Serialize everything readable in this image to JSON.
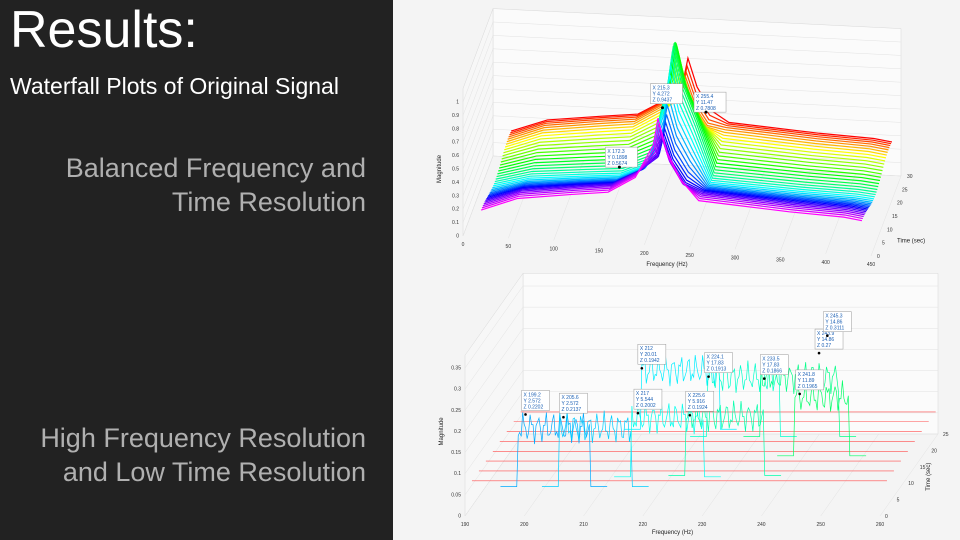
{
  "slide": {
    "title": "Results:",
    "subtitle": "Waterfall Plots of Original Signal",
    "label1_line1": "Balanced Frequency and",
    "label1_line2": "Time Resolution",
    "label2_line1": "High Frequency Resolution",
    "label2_line2": "and Low Time Resolution"
  },
  "colors": {
    "left_bg": "#222222",
    "title": "#ffffff",
    "label": "#b0b0b0"
  },
  "chart_data": [
    {
      "type": "line",
      "view": "3d-waterfall",
      "xlabel": "Frequency (Hz)",
      "ylabel": "Time (sec)",
      "zlabel": "Magnitude",
      "xlim": [
        0,
        450
      ],
      "ylim": [
        0,
        30
      ],
      "zlim": [
        0,
        1
      ],
      "x_ticks": [
        0,
        50,
        100,
        150,
        200,
        250,
        300,
        350,
        400,
        450
      ],
      "y_ticks": [
        0,
        5,
        10,
        15,
        20,
        25,
        30
      ],
      "z_ticks": [
        0,
        0.1,
        0.2,
        0.3,
        0.4,
        0.5,
        0.6,
        0.7,
        0.8,
        0.9,
        1
      ],
      "grid": true,
      "datatips": [
        {
          "x": "172.3",
          "y": "0.1898",
          "z": "0.5674"
        },
        {
          "x": "215.3",
          "y": "4.272",
          "z": "0.9437"
        },
        {
          "x": "255.4",
          "y": "11.47",
          "z": "0.7808"
        }
      ],
      "profile": {
        "x": [
          20,
          60,
          120,
          160,
          190,
          210,
          215,
          225,
          240,
          260,
          300,
          360,
          420,
          440
        ],
        "z": [
          0.2,
          0.3,
          0.35,
          0.38,
          0.5,
          0.75,
          0.95,
          0.7,
          0.5,
          0.35,
          0.33,
          0.3,
          0.28,
          0.26
        ]
      }
    },
    {
      "type": "line",
      "view": "3d-waterfall",
      "xlabel": "Frequency (Hz)",
      "ylabel": "Time (sec)",
      "zlabel": "Magnitude",
      "xlim": [
        190,
        260
      ],
      "ylim": [
        0,
        25
      ],
      "zlim": [
        0,
        0.35
      ],
      "x_ticks": [
        190,
        200,
        210,
        220,
        230,
        240,
        250,
        260
      ],
      "y_ticks": [
        0,
        5,
        10,
        15,
        20,
        25
      ],
      "z_ticks": [
        0,
        0.05,
        0.1,
        0.15,
        0.2,
        0.25,
        0.3,
        0.35
      ],
      "grid": true,
      "datatips": [
        {
          "x": "199.2",
          "y": "2.572",
          "z": "0.2202"
        },
        {
          "x": "205.6",
          "y": "2.572",
          "z": "0.2137"
        },
        {
          "x": "212",
          "y": "20.01",
          "z": "0.1942"
        },
        {
          "x": "217",
          "y": "5.544",
          "z": "0.2002"
        },
        {
          "x": "224.1",
          "y": "17.83",
          "z": "0.1913"
        },
        {
          "x": "225.6",
          "y": "5.916",
          "z": "0.1924"
        },
        {
          "x": "233.5",
          "y": "17.83",
          "z": "0.1866"
        },
        {
          "x": "243.9",
          "y": "14.86",
          "z": "0.27"
        },
        {
          "x": "241.8",
          "y": "11.89",
          "z": "0.1965"
        },
        {
          "x": "245.3",
          "y": "14.86",
          "z": "0.3111"
        }
      ]
    }
  ]
}
